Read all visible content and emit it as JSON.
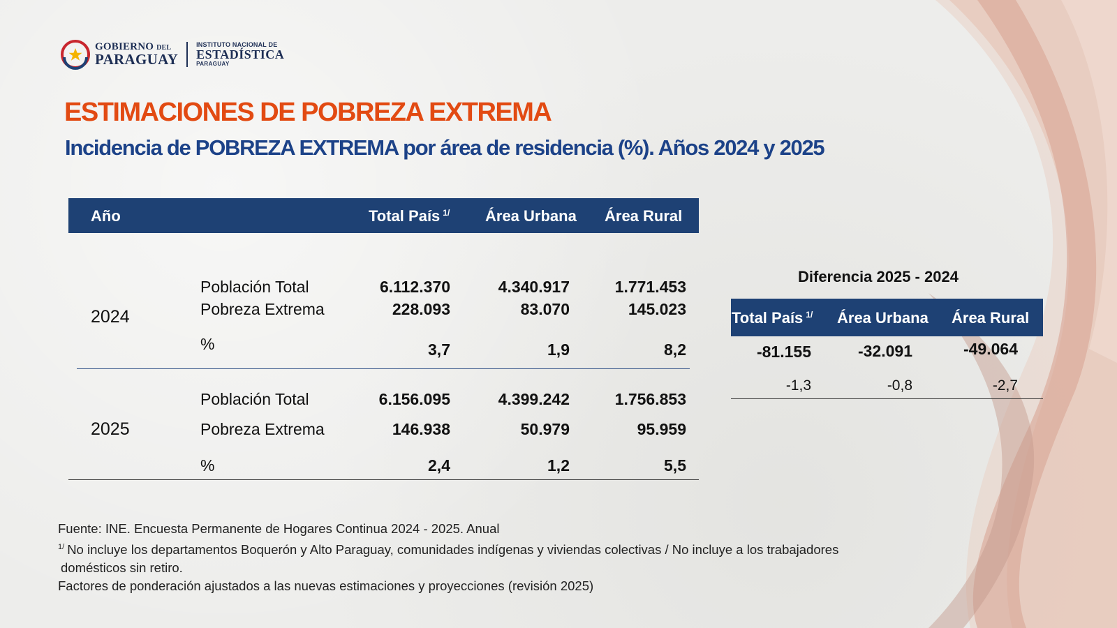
{
  "header": {
    "gov_line1": "GOBIERNO",
    "gov_line1_small": "DEL",
    "gov_line2": "PARAGUAY",
    "ine_line1": "INSTITUTO NACIONAL DE",
    "ine_line2": "ESTADÍSTICA",
    "ine_line3": "PARAGUAY"
  },
  "title": "ESTIMACIONES DE POBREZA EXTREMA",
  "subtitle": "Incidencia de POBREZA EXTREMA por área de residencia (%). Años 2024 y 2025",
  "main_table": {
    "headers": {
      "year": "Año",
      "total": "Total País",
      "total_note": "1/",
      "urban": "Área Urbana",
      "rural": "Área Rural"
    },
    "rows": [
      {
        "year": "2024",
        "population_label": "Población Total",
        "population": [
          "6.112.370",
          "4.340.917",
          "1.771.453"
        ],
        "poverty_label": "Pobreza Extrema",
        "poverty": [
          "228.093",
          "83.070",
          "145.023"
        ],
        "pct_label": "%",
        "pct": [
          "3,7",
          "1,9",
          "8,2"
        ]
      },
      {
        "year": "2025",
        "population_label": "Población Total",
        "population": [
          "6.156.095",
          "4.399.242",
          "1.756.853"
        ],
        "poverty_label": "Pobreza Extrema",
        "poverty": [
          "146.938",
          "50.979",
          "95.959"
        ],
        "pct_label": "%",
        "pct": [
          "2,4",
          "1,2",
          "5,5"
        ]
      }
    ]
  },
  "diff_table": {
    "title": "Diferencia 2025 - 2024",
    "headers": {
      "total": "Total País",
      "total_note": "1/",
      "urban": "Área Urbana",
      "rural": "Área Rural"
    },
    "absolute": [
      "-81.155",
      "-32.091",
      "-49.064"
    ],
    "points": [
      "-1,3",
      "-0,8",
      "-2,7"
    ]
  },
  "notes": {
    "source": "Fuente: INE. Encuesta Permanente de Hogares Continua 2024 - 2025. Anual",
    "note_mark": "1/",
    "note1_line1": "No incluye los departamentos Boquerón y Alto Paraguay, comunidades indígenas y viviendas colectivas / No incluye a los trabajadores",
    "note1_line2": "domésticos sin retiro.",
    "weights": "Factores de ponderación ajustados a las nuevas estimaciones y proyecciones (revisión 2025)"
  },
  "colors": {
    "title": "#e24a12",
    "subtitle": "#1c4288",
    "header_bg": "#1e4174",
    "ribbon_light": "#e8c4b2",
    "ribbon_dark": "#b5867a"
  }
}
